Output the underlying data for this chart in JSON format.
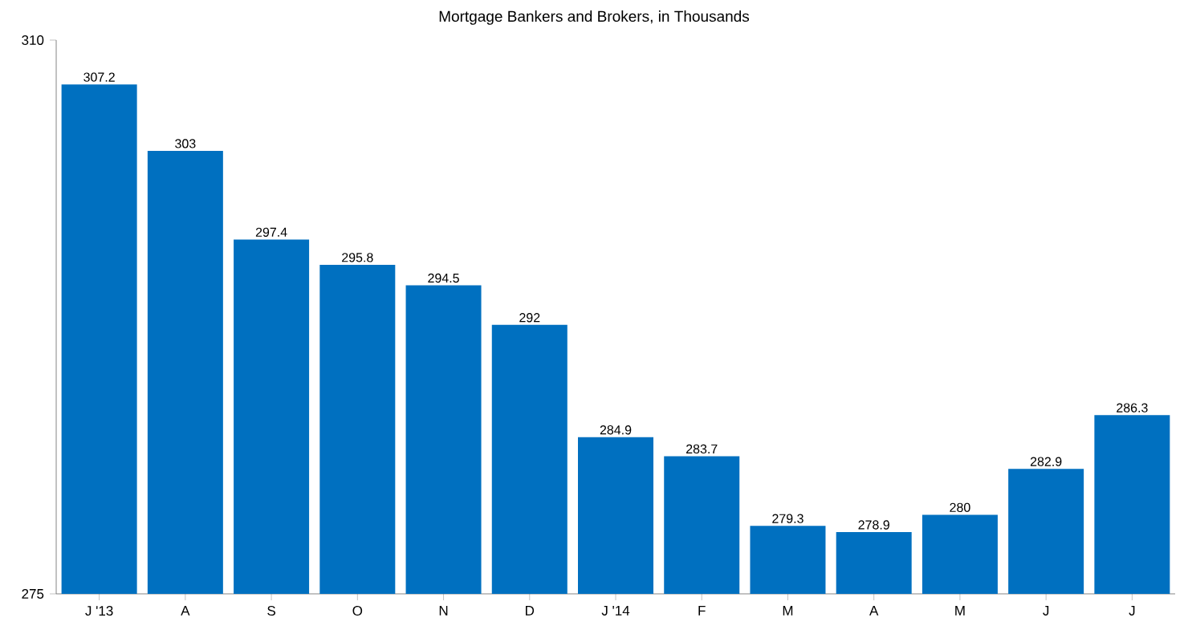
{
  "chart_data": {
    "type": "bar",
    "title": "Mortgage Bankers and Brokers, in Thousands",
    "categories": [
      "J '13",
      "A",
      "S",
      "O",
      "N",
      "D",
      "J '14",
      "F",
      "M",
      "A",
      "M",
      "J",
      "J"
    ],
    "values": [
      307.2,
      303,
      297.4,
      295.8,
      294.5,
      292,
      284.9,
      283.7,
      279.3,
      278.9,
      280,
      282.9,
      286.3
    ],
    "color": "#0070c0",
    "ylim": [
      275,
      310
    ],
    "yticks": [
      275,
      310
    ],
    "data_labels": true
  }
}
